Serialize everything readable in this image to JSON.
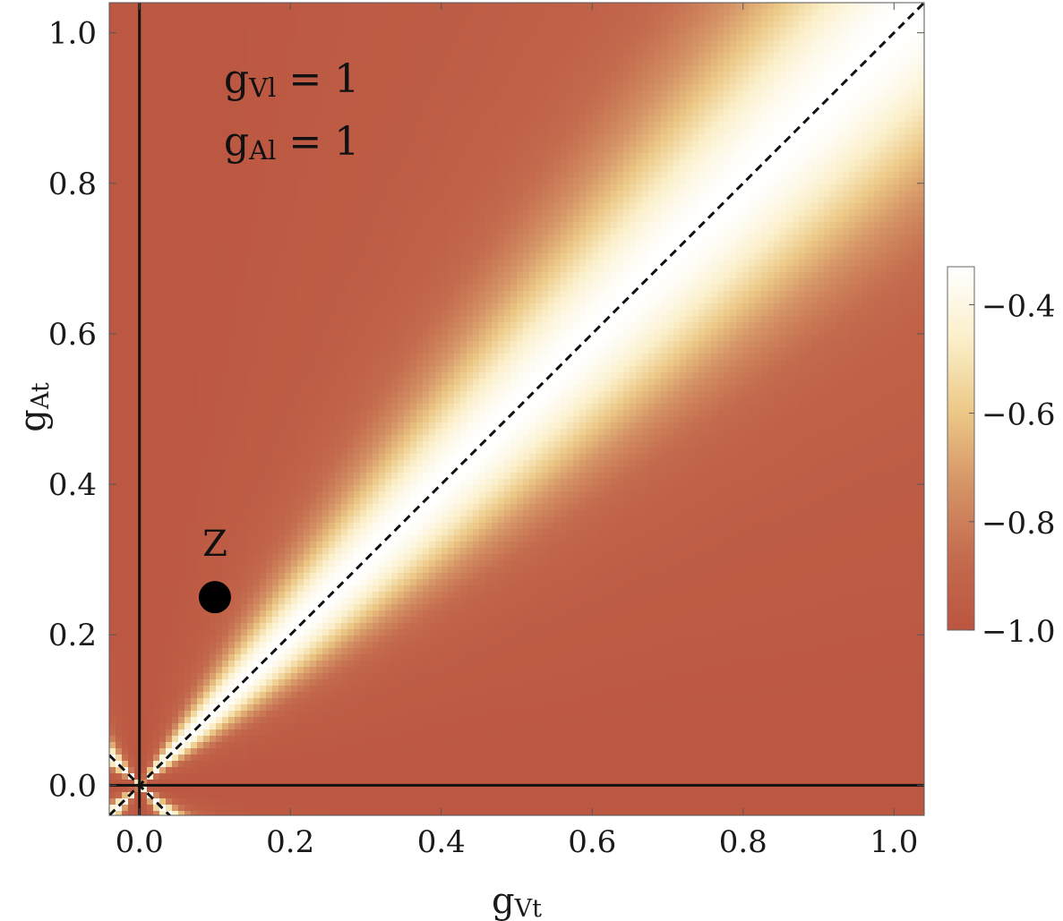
{
  "chart_data": {
    "type": "heatmap",
    "title": "",
    "xlabel": {
      "base": "g",
      "sub": "Vt"
    },
    "ylabel": {
      "base": "g",
      "sub": "At"
    },
    "xlim": [
      -0.04,
      1.04
    ],
    "ylim": [
      -0.04,
      1.04
    ],
    "x_ticks": [
      0.0,
      0.2,
      0.4,
      0.6,
      0.8,
      1.0
    ],
    "x_tick_labels": [
      "0.0",
      "0.2",
      "0.4",
      "0.6",
      "0.8",
      "1.0"
    ],
    "y_ticks": [
      0.0,
      0.2,
      0.4,
      0.6,
      0.8,
      1.0
    ],
    "y_tick_labels": [
      "0.0",
      "0.2",
      "0.4",
      "0.6",
      "0.8",
      "1.0"
    ],
    "grid": false,
    "reference_lines": [
      {
        "kind": "vertical",
        "x": 0.0,
        "style": "solid"
      },
      {
        "kind": "horizontal",
        "y": 0.0,
        "style": "solid"
      },
      {
        "kind": "diagonal",
        "slope": 1,
        "style": "dashed"
      },
      {
        "kind": "anti-diagonal",
        "slope": -1,
        "style": "dashed"
      }
    ],
    "annotations": [
      {
        "base": "g",
        "sub": "Vl",
        "rest": " = 1"
      },
      {
        "base": "g",
        "sub": "Al",
        "rest": " = 1"
      }
    ],
    "points": [
      {
        "label": "Z",
        "x": 0.1,
        "y": 0.25
      }
    ],
    "colorbar": {
      "min": -1.0,
      "max": -0.33,
      "ticks": [
        -0.4,
        -0.6,
        -0.8,
        -1.0
      ],
      "tick_labels": [
        "−0.4",
        "−0.6",
        "−0.8",
        "−1.0"
      ],
      "colors": [
        "#bb5540",
        "#c46b4e",
        "#d59466",
        "#ecc886",
        "#fbefc9",
        "#ffffff"
      ]
    }
  }
}
